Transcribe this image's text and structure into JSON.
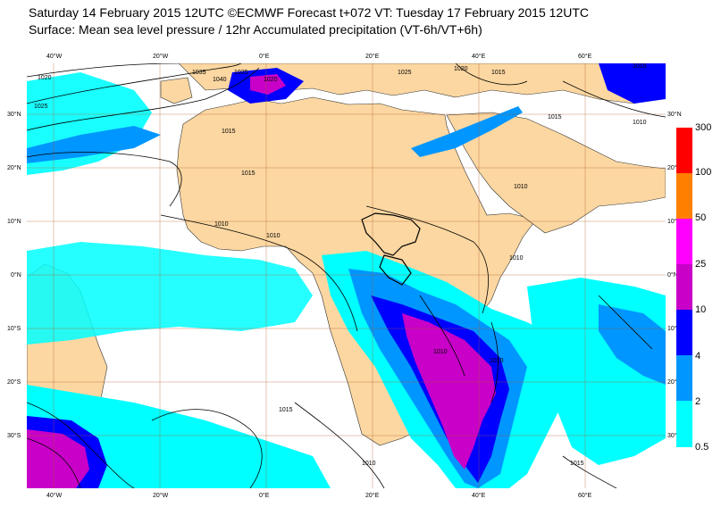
{
  "header": {
    "line1": "Saturday 14 February 2015 12UTC ©ECMWF Forecast t+072 VT: Tuesday 17 February 2015 12UTC",
    "line2": "Surface: Mean sea level pressure / 12hr Accumulated precipitation (VT-6h/VT+6h)"
  },
  "axes": {
    "lon_labels": [
      "40°W",
      "20°W",
      "0°E",
      "20°E",
      "40°E",
      "60°E"
    ],
    "lat_labels_left": [
      "30°N",
      "20°N",
      "10°N",
      "0°N",
      "10°S",
      "20°S",
      "30°S"
    ],
    "lat_labels_right": [
      "30°N",
      "20°N",
      "10°N",
      "0°N",
      "10°S",
      "20°S",
      "30°S"
    ]
  },
  "legend": {
    "labels": [
      "300",
      "100",
      "50",
      "25",
      "10",
      "4",
      "2",
      "0.5"
    ],
    "colors": [
      "#ff0000",
      "#ff8000",
      "#ff00ff",
      "#c800c8",
      "#0000ff",
      "#0096ff",
      "#00ffff",
      "#00ffff"
    ]
  },
  "isobars": {
    "labels": [
      "1020",
      "1025",
      "1035",
      "1040",
      "1025",
      "1020",
      "1015",
      "1015",
      "1010",
      "1010",
      "1025",
      "1020",
      "1015",
      "1015",
      "1015",
      "1010",
      "1010",
      "1010",
      "1010",
      "1010",
      "1015",
      "1010",
      "1015"
    ]
  },
  "colors": {
    "land": "#fcd7a1",
    "sea": "#ffffff",
    "grid": "#b05a28",
    "precip_light": "#00ffff",
    "precip_mid": "#0096ff",
    "precip_heavy": "#0000ff",
    "precip_very_heavy": "#c800c8"
  }
}
